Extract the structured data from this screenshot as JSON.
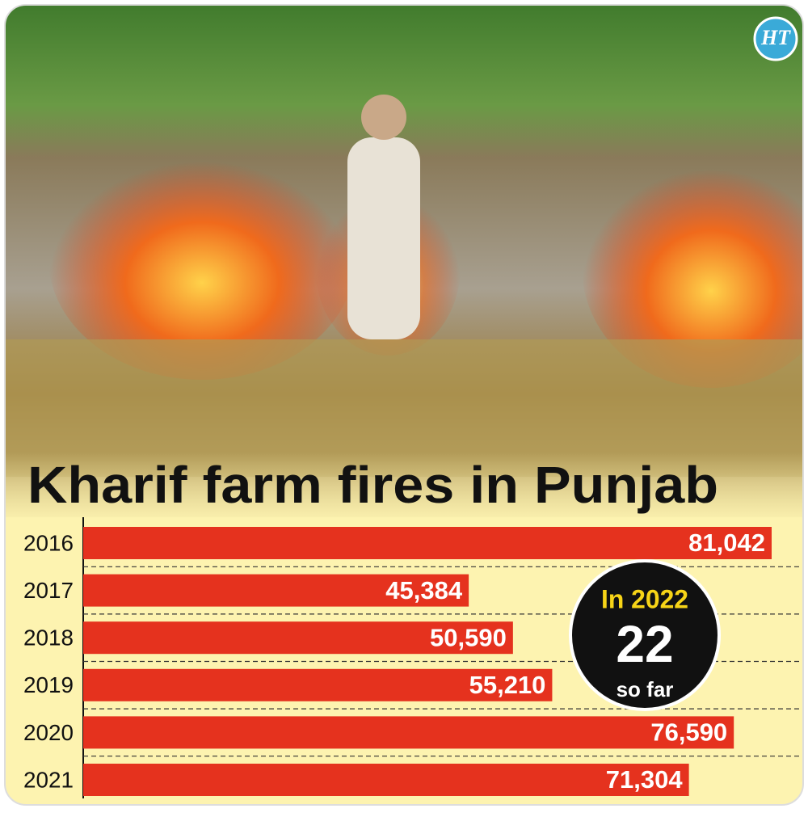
{
  "chart_data": {
    "type": "bar",
    "orientation": "horizontal",
    "title": "Kharif farm fires in Punjab",
    "logo": "HT",
    "categories": [
      "2016",
      "2017",
      "2018",
      "2019",
      "2020",
      "2021"
    ],
    "values": [
      81042,
      45384,
      50590,
      55210,
      76590,
      71304
    ],
    "value_labels": [
      "81,042",
      "45,384",
      "50,590",
      "55,210",
      "76,590",
      "71,304"
    ],
    "color": "#e5321e",
    "callout": {
      "title": "In 2022",
      "value": 22,
      "note": "so far"
    }
  }
}
